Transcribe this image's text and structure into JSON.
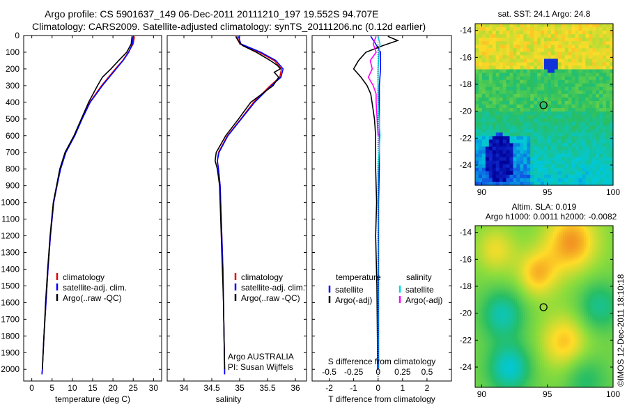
{
  "header": {
    "line1": "Argo profile: CS 5901637_149 06-Dec-2011 20111210_197 19.552S 94.707E",
    "line2": "Climatology: CARS2009. Satellite-adjusted climatology: synTS_20111206.nc (0.12d earlier)"
  },
  "credit": "©IMOS 12-Dec-2011 18:10:18",
  "chart_data": [
    {
      "type": "line",
      "title": "",
      "xlabel": "temperature (deg C)",
      "ylabel": "",
      "xlim": [
        -2,
        32
      ],
      "ylim": [
        2070,
        0
      ],
      "xticks": [
        "0",
        "5",
        "10",
        "15",
        "20",
        "25",
        "30"
      ],
      "yticks": [
        "0",
        "100",
        "200",
        "300",
        "400",
        "500",
        "600",
        "700",
        "800",
        "900",
        "1000",
        "1100",
        "1200",
        "1300",
        "1400",
        "1500",
        "1600",
        "1700",
        "1800",
        "1900",
        "2000"
      ],
      "legend": [
        "climatology",
        "satellite-adj. clim.",
        "Argo(..raw -QC)"
      ],
      "series": [
        {
          "name": "climatology",
          "color": "#e00000",
          "depth": [
            5,
            50,
            100,
            150,
            200,
            300,
            400,
            500,
            600,
            700,
            800,
            900,
            1000,
            1200,
            1400,
            1600,
            1800,
            2000,
            2030
          ],
          "values": [
            25.3,
            25.0,
            23.8,
            22.4,
            20.6,
            17.2,
            14.3,
            12.3,
            10.5,
            8.3,
            7.0,
            6.2,
            5.4,
            4.6,
            4.0,
            3.5,
            3.0,
            2.6,
            2.5
          ]
        },
        {
          "name": "satellite-adj. clim.",
          "color": "#0000ff",
          "depth": [
            5,
            50,
            100,
            150,
            200,
            300,
            400,
            500,
            600,
            700,
            800,
            900,
            1000,
            1200,
            1400,
            1600,
            1800,
            2000,
            2030
          ],
          "values": [
            25.0,
            24.8,
            23.9,
            22.5,
            20.8,
            17.4,
            14.4,
            12.4,
            10.6,
            8.4,
            7.1,
            6.2,
            5.4,
            4.6,
            4.0,
            3.5,
            3.0,
            2.6,
            2.5
          ]
        },
        {
          "name": "Argo(..raw -QC)",
          "color": "#000000",
          "depth": [
            5,
            50,
            100,
            150,
            200,
            250,
            300,
            400,
            500,
            600,
            700,
            800,
            900,
            1000,
            1200,
            1400,
            1600,
            1800,
            2000
          ],
          "values": [
            24.7,
            24.5,
            23.4,
            21.4,
            19.5,
            17.4,
            16.2,
            14.0,
            12.2,
            10.4,
            8.2,
            6.9,
            6.1,
            5.3,
            4.5,
            3.9,
            3.4,
            3.0,
            2.6
          ]
        }
      ]
    },
    {
      "type": "line",
      "xlabel": "salinity",
      "xlim": [
        33.7,
        36.2
      ],
      "ylim": [
        2070,
        0
      ],
      "xticks": [
        "34",
        "34.5",
        "35",
        "35.5",
        "36"
      ],
      "legend": [
        "climatology",
        "satellite-adj. clim.",
        "Argo(..raw -QC)"
      ],
      "annotation": [
        "Argo AUSTRALIA",
        "PI: Susan Wijffels"
      ],
      "series": [
        {
          "name": "climatology",
          "color": "#e00000",
          "depth": [
            5,
            50,
            100,
            150,
            200,
            250,
            300,
            400,
            500,
            600,
            700,
            750,
            800,
            900,
            1000,
            1200,
            1400,
            1600,
            1800,
            2000,
            2030
          ],
          "values": [
            34.95,
            35.0,
            35.35,
            35.62,
            35.75,
            35.72,
            35.55,
            35.25,
            35.02,
            34.78,
            34.62,
            34.6,
            34.62,
            34.65,
            34.66,
            34.68,
            34.7,
            34.71,
            34.72,
            34.73,
            34.73
          ]
        },
        {
          "name": "satellite-adj. clim.",
          "color": "#0000ff",
          "depth": [
            5,
            50,
            100,
            150,
            200,
            250,
            300,
            400,
            500,
            600,
            700,
            750,
            800,
            900,
            1000,
            1200,
            1400,
            1600,
            1800,
            2000,
            2030
          ],
          "values": [
            34.98,
            35.02,
            35.38,
            35.65,
            35.78,
            35.74,
            35.57,
            35.27,
            35.03,
            34.79,
            34.63,
            34.6,
            34.62,
            34.65,
            34.66,
            34.68,
            34.7,
            34.71,
            34.72,
            34.73,
            34.73
          ]
        },
        {
          "name": "Argo(..raw -QC)",
          "color": "#000000",
          "depth": [
            5,
            30,
            60,
            100,
            150,
            180,
            200,
            220,
            250,
            300,
            400,
            500,
            600,
            700,
            750,
            800,
            900,
            1000,
            1200,
            1400,
            1600,
            1800,
            2000
          ],
          "values": [
            34.93,
            34.97,
            35.05,
            35.3,
            35.55,
            35.68,
            35.73,
            35.62,
            35.7,
            35.6,
            35.2,
            34.98,
            34.75,
            34.58,
            34.56,
            34.6,
            34.64,
            34.65,
            34.67,
            34.69,
            34.71,
            34.72,
            34.73
          ]
        }
      ]
    },
    {
      "type": "line",
      "xlabel": "T difference from climatology",
      "xlabel_top": "S difference from climatology",
      "xlim": [
        -2.7,
        3.0
      ],
      "ylim": [
        2070,
        0
      ],
      "xticks": [
        "-2",
        "-1",
        "0",
        "1",
        "2"
      ],
      "xticks_top": [
        "-0.5",
        "-0.25",
        "0",
        "0.25",
        "0.5"
      ],
      "legend_left": {
        "title": "temperature",
        "items": [
          "satellite",
          "Argo(-adj)"
        ]
      },
      "legend_right": {
        "title": "salinity",
        "items": [
          "satellite",
          "Argo(-adj)"
        ]
      },
      "series": [
        {
          "name": "T satellite",
          "color": "#0000ff",
          "depth": [
            5,
            50,
            100,
            200,
            300,
            400,
            600,
            800,
            1000,
            1500,
            2000
          ],
          "values": [
            -0.3,
            -0.1,
            0.1,
            0.1,
            0.05,
            0.05,
            0.05,
            0.05,
            0.02,
            0.02,
            0.02
          ]
        },
        {
          "name": "T Argo(-adj)",
          "color": "#000000",
          "depth": [
            5,
            30,
            60,
            100,
            150,
            200,
            250,
            300,
            350,
            400,
            500,
            600,
            700,
            800,
            900,
            1000,
            1200,
            1500,
            1800,
            2000
          ],
          "values": [
            0.4,
            0.8,
            0.2,
            -0.5,
            -0.8,
            -1.0,
            -0.7,
            -0.45,
            -0.3,
            -0.25,
            -0.15,
            -0.1,
            -0.1,
            -0.1,
            -0.08,
            -0.06,
            -0.1,
            -0.05,
            -0.03,
            -0.02
          ]
        },
        {
          "name": "S satellite",
          "color": "#00d4e8",
          "depth": [
            5,
            50,
            100,
            200,
            300,
            400,
            600,
            800,
            1000,
            1500,
            2000
          ],
          "values": [
            0.0,
            0.02,
            0.01,
            0.0,
            0.0,
            0.0,
            0.02,
            0.0,
            0.0,
            0.0,
            0.0
          ]
        },
        {
          "name": "S Argo(-adj)",
          "color": "#ff00ff",
          "depth": [
            5,
            50,
            100,
            150,
            200,
            250,
            300,
            350,
            400,
            500,
            600
          ],
          "values": [
            -0.02,
            -0.05,
            -0.02,
            -0.08,
            -0.06,
            -0.1,
            -0.05,
            -0.02,
            -0.02,
            -0.01,
            0.0
          ]
        }
      ]
    },
    {
      "type": "heatmap",
      "title": "sat. SST: 24.1  Argo: 24.8",
      "xlim": [
        89.5,
        100
      ],
      "ylim": [
        -25.5,
        -13.5
      ],
      "xticks": [
        "90",
        "95",
        "100"
      ],
      "yticks": [
        "-14",
        "-16",
        "-18",
        "-20",
        "-22",
        "-24"
      ],
      "marker": [
        94.707,
        -19.552
      ]
    },
    {
      "type": "heatmap",
      "title": "Altim. SLA: 0.019",
      "subtitle": "Argo h1000: 0.0011  h2000: -0.0082",
      "xlim": [
        89.5,
        100
      ],
      "ylim": [
        -25.5,
        -13.5
      ],
      "xticks": [
        "90",
        "95",
        "100"
      ],
      "yticks": [
        "-14",
        "-16",
        "-18",
        "-20",
        "-22",
        "-24"
      ],
      "marker": [
        94.707,
        -19.552
      ]
    }
  ]
}
